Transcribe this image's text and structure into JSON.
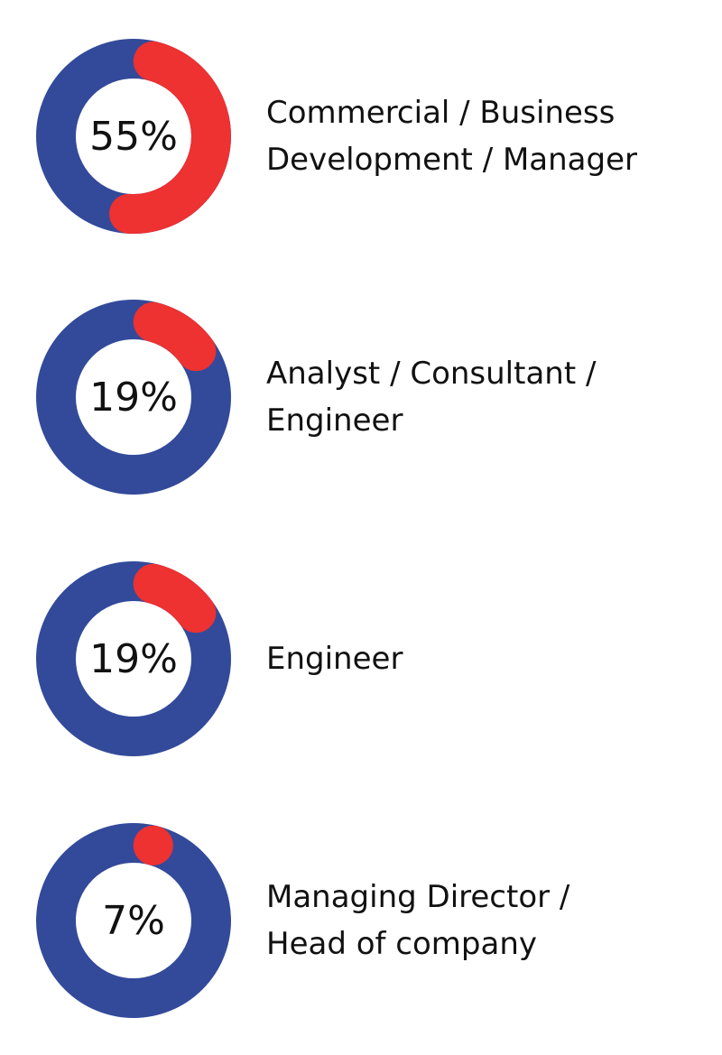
{
  "chart_data": [
    {
      "type": "pie",
      "value": 55,
      "value_label": "55%",
      "category": [
        "Commercial / Business",
        "Development / Manager"
      ]
    },
    {
      "type": "pie",
      "value": 19,
      "value_label": "19%",
      "category": [
        "Analyst / Consultant /",
        "Engineer"
      ]
    },
    {
      "type": "pie",
      "value": 19,
      "value_label": "19%",
      "category": [
        "Engineer"
      ]
    },
    {
      "type": "pie",
      "value": 7,
      "value_label": "7%",
      "category": [
        "Managing Director /",
        "Head of company"
      ]
    }
  ],
  "colors": {
    "filled": "#ee3131",
    "remaining": "#334a9a",
    "text": "#111111"
  }
}
